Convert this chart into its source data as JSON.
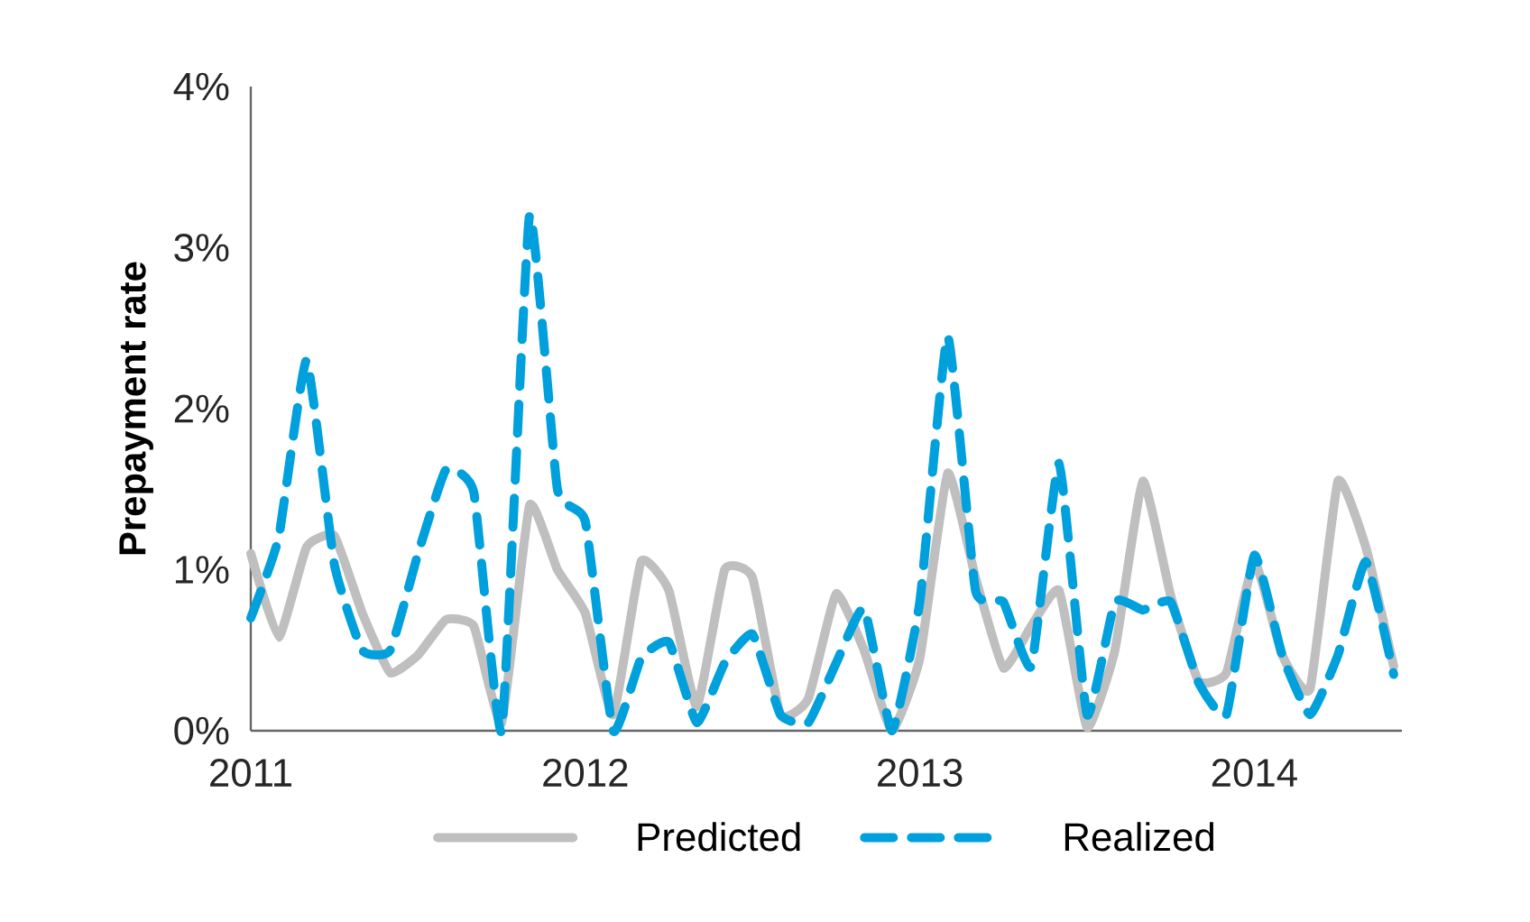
{
  "chart_data": {
    "type": "line",
    "ylabel": "Prepayment rate",
    "x": [
      "2011-01",
      "2011-02",
      "2011-03",
      "2011-04",
      "2011-05",
      "2011-06",
      "2011-07",
      "2011-08",
      "2011-09",
      "2011-10",
      "2011-11",
      "2011-12",
      "2012-01",
      "2012-02",
      "2012-03",
      "2012-04",
      "2012-05",
      "2012-06",
      "2012-07",
      "2012-08",
      "2012-09",
      "2012-10",
      "2012-11",
      "2012-12",
      "2013-01",
      "2013-02",
      "2013-03",
      "2013-04",
      "2013-05",
      "2013-06",
      "2013-07",
      "2013-08",
      "2013-09",
      "2013-10",
      "2013-11",
      "2013-12",
      "2014-01",
      "2014-02",
      "2014-03",
      "2014-04",
      "2014-05",
      "2014-06"
    ],
    "series": [
      {
        "name": "Predicted",
        "color": "#bfbfbf",
        "line_style": "solid",
        "values": [
          1.1,
          0.58,
          1.14,
          1.21,
          0.73,
          0.36,
          0.47,
          0.69,
          0.65,
          0.05,
          1.4,
          1.0,
          0.73,
          0.1,
          1.05,
          0.87,
          0.15,
          1.0,
          0.95,
          0.1,
          0.2,
          0.85,
          0.5,
          0.0,
          0.45,
          1.6,
          0.95,
          0.39,
          0.65,
          0.87,
          0.02,
          0.5,
          1.55,
          0.84,
          0.31,
          0.36,
          1.05,
          0.47,
          0.26,
          1.55,
          1.14,
          0.4
        ]
      },
      {
        "name": "Realized",
        "color": "#00a0dc",
        "line_style": "dashed",
        "values": [
          0.7,
          1.2,
          2.3,
          1.03,
          0.5,
          0.5,
          1.1,
          1.62,
          1.48,
          0.0,
          3.2,
          1.5,
          1.3,
          0.0,
          0.45,
          0.55,
          0.05,
          0.42,
          0.6,
          0.1,
          0.05,
          0.42,
          0.76,
          0.0,
          0.8,
          2.45,
          0.87,
          0.8,
          0.4,
          1.66,
          0.1,
          0.8,
          0.75,
          0.8,
          0.3,
          0.1,
          1.09,
          0.47,
          0.1,
          0.47,
          1.05,
          0.35
        ]
      }
    ],
    "xlim": [
      "2011-01",
      "2014-06-10"
    ],
    "xticks": [
      "2011",
      "2012",
      "2013",
      "2014"
    ],
    "ylim": [
      0,
      4
    ],
    "yticks": [
      {
        "value": 0,
        "label": "0%"
      },
      {
        "value": 1,
        "label": "1%"
      },
      {
        "value": 2,
        "label": "2%"
      },
      {
        "value": 3,
        "label": "3%"
      },
      {
        "value": 4,
        "label": "4%"
      }
    ],
    "legend": "bottom"
  }
}
